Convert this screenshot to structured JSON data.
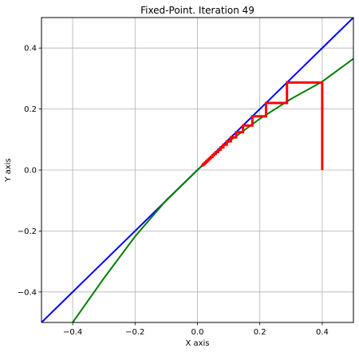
{
  "chart_data": {
    "type": "line",
    "title": "Fixed-Point. Iteration 49",
    "xlabel": "X axis",
    "ylabel": "Y axis",
    "xlim": [
      -0.5,
      0.5
    ],
    "ylim": [
      -0.5,
      0.5
    ],
    "grid": true,
    "x_ticks": [
      -0.4,
      -0.2,
      0.0,
      0.2,
      0.4
    ],
    "y_ticks": [
      -0.4,
      -0.2,
      0.0,
      0.2,
      0.4
    ],
    "x_tick_labels": [
      "−0.4",
      "−0.2",
      "0.0",
      "0.2",
      "0.4"
    ],
    "y_tick_labels": [
      "−0.4",
      "−0.2",
      "0.0",
      "0.2",
      "0.4"
    ],
    "colors": {
      "identity": "#0000ff",
      "function": "#008000",
      "iteration": "#ff0000",
      "grid": "#b0b0b0"
    },
    "series": [
      {
        "x": [
          -0.5,
          0.5
        ],
        "y": [
          -0.5,
          0.5
        ]
      },
      {
        "x": [
          -0.4,
          -0.3,
          -0.2,
          -0.1,
          0.0,
          0.1,
          0.2,
          0.3,
          0.4,
          0.5
        ],
        "y": [
          -0.5,
          -0.355,
          -0.218,
          -0.099,
          0.0,
          0.093,
          0.168,
          0.233,
          0.29,
          0.365
        ]
      },
      {
        "x": [
          0.4,
          0.4,
          0.287,
          0.287,
          0.22,
          0.22,
          0.176,
          0.176,
          0.146,
          0.146,
          0.124,
          0.124,
          0.107,
          0.107,
          0.094,
          0.094,
          0.083,
          0.083,
          0.074,
          0.074,
          0.066,
          0.066,
          0.059,
          0.059,
          0.053,
          0.053,
          0.048,
          0.048,
          0.043,
          0.043,
          0.039,
          0.039,
          0.035,
          0.035,
          0.031,
          0.031,
          0.028,
          0.028,
          0.025,
          0.025,
          0.022,
          0.022,
          0.019,
          0.019,
          0.017,
          0.017,
          0.015
        ],
        "y": [
          0.0,
          0.287,
          0.287,
          0.22,
          0.22,
          0.176,
          0.176,
          0.146,
          0.146,
          0.124,
          0.124,
          0.107,
          0.107,
          0.094,
          0.094,
          0.083,
          0.083,
          0.074,
          0.074,
          0.066,
          0.066,
          0.059,
          0.059,
          0.053,
          0.053,
          0.048,
          0.048,
          0.043,
          0.043,
          0.039,
          0.039,
          0.035,
          0.035,
          0.031,
          0.031,
          0.028,
          0.028,
          0.025,
          0.025,
          0.022,
          0.022,
          0.019,
          0.019,
          0.017,
          0.017,
          0.015,
          0.015
        ]
      }
    ]
  }
}
